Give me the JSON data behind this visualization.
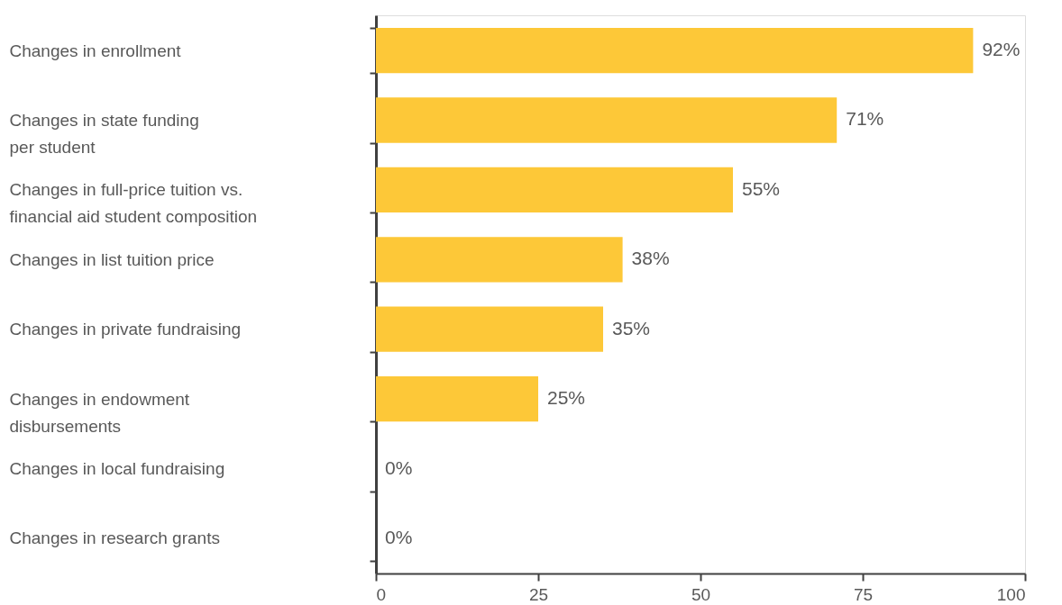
{
  "chart_data": {
    "type": "bar",
    "orientation": "horizontal",
    "categories": [
      "Changes in enrollment",
      "Changes in state funding\nper student",
      "Changes in full-price tuition vs.\nfinancial aid student composition",
      "Changes in list tuition price",
      "Changes in private fundraising",
      "Changes in endowment\ndisbursements",
      "Changes in local fundraising",
      "Changes in research grants"
    ],
    "values": [
      92,
      71,
      55,
      38,
      35,
      25,
      0,
      0
    ],
    "value_labels": [
      "92%",
      "71%",
      "55%",
      "38%",
      "35%",
      "25%",
      "0%",
      "0%"
    ],
    "color": "#fdc838",
    "xlim": [
      0,
      100
    ],
    "xticks": [
      0,
      25,
      50,
      75,
      100
    ],
    "grid": false
  }
}
